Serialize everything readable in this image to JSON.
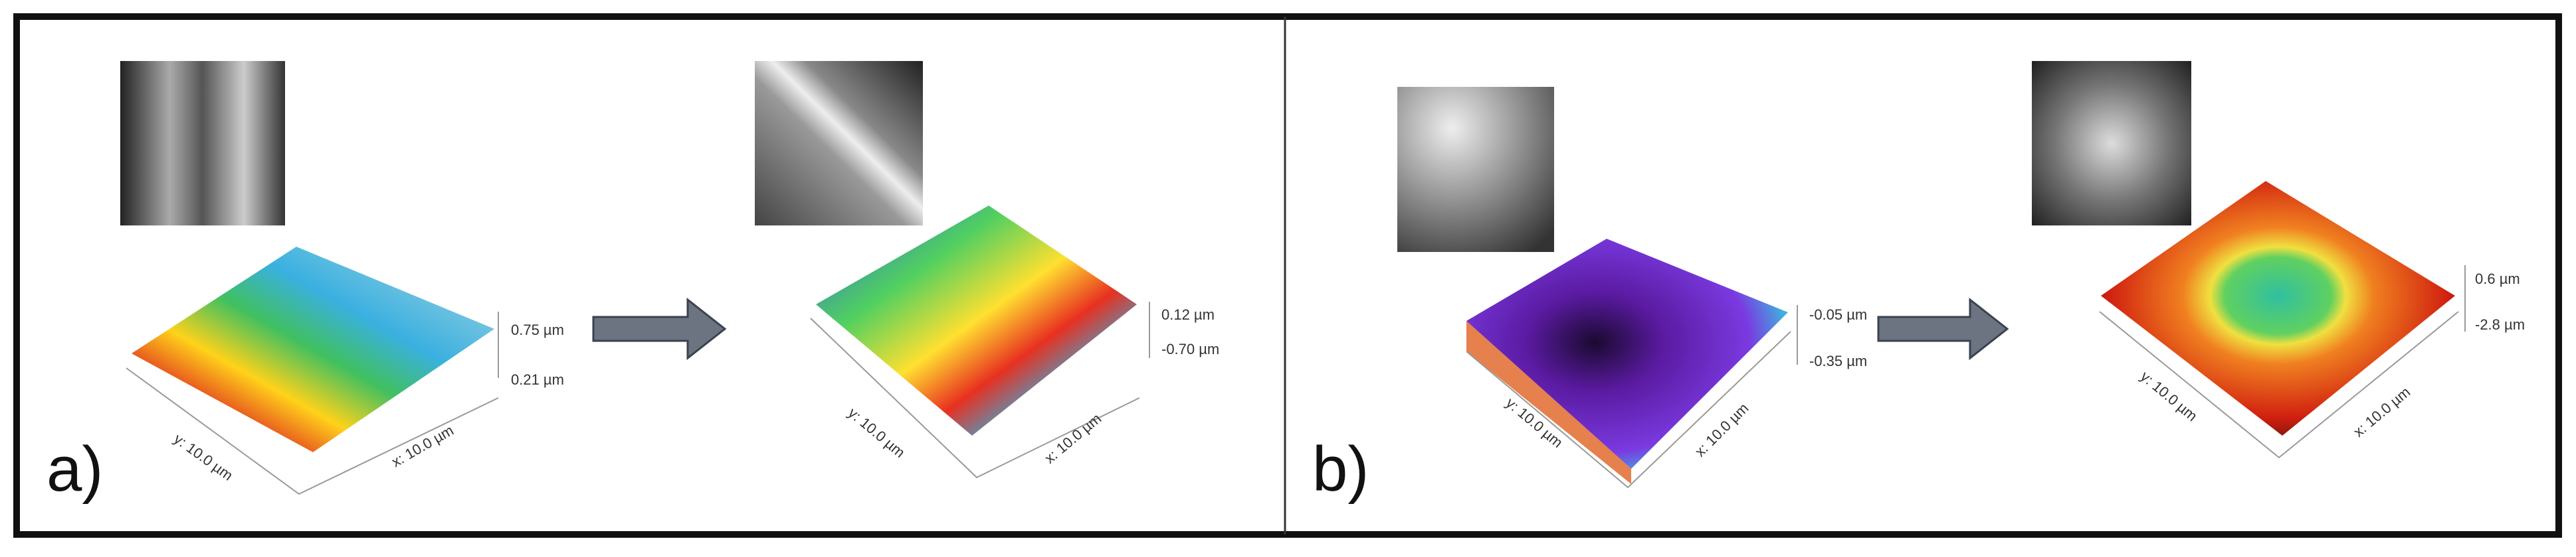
{
  "panels": [
    {
      "label": "a)",
      "surfaces": [
        {
          "z_top": "0.75 µm",
          "z_bottom": "0.21 µm",
          "y_axis": "y: 10.0 µm",
          "x_axis": "x: 10.0 µm"
        },
        {
          "z_top": "0.12 µm",
          "z_bottom": "-0.70 µm",
          "y_axis": "y: 10.0 µm",
          "x_axis": "x: 10.0 µm"
        }
      ]
    },
    {
      "label": "b)",
      "surfaces": [
        {
          "z_top": "-0.05 µm",
          "z_bottom": "-0.35 µm",
          "y_axis": "y: 10.0 µm",
          "x_axis": "x: 10.0 µm"
        },
        {
          "z_top": "0.6 µm",
          "z_bottom": "-2.8 µm",
          "y_axis": "y: 10.0 µm",
          "x_axis": "x: 10.0 µm"
        }
      ]
    }
  ]
}
